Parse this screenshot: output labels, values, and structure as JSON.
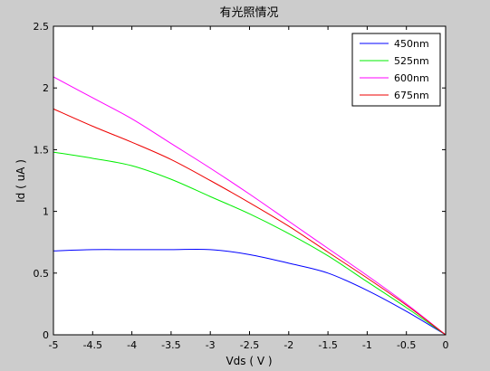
{
  "chart_data": {
    "type": "line",
    "title": "有光照情况",
    "xlabel": "Vds ( V )",
    "ylabel": "Id ( uA )",
    "xlim": [
      -5,
      0
    ],
    "ylim": [
      0,
      2.5
    ],
    "xticks": [
      -5,
      -4.5,
      -4,
      -3.5,
      -3,
      -2.5,
      -2,
      -1.5,
      -1,
      -0.5,
      0
    ],
    "yticks": [
      0,
      0.5,
      1,
      1.5,
      2,
      2.5
    ],
    "xtick_labels": [
      "-5",
      "-4.5",
      "-4",
      "-3.5",
      "-3",
      "-2.5",
      "-2",
      "-1.5",
      "-1",
      "-0.5",
      "0"
    ],
    "ytick_labels": [
      "0",
      "0.5",
      "1",
      "1.5",
      "2",
      "2.5"
    ],
    "grid": false,
    "legend": "top-right",
    "x": [
      -5,
      -4.5,
      -4,
      -3.5,
      -3,
      -2.5,
      -2,
      -1.5,
      -1,
      -0.5,
      0
    ],
    "series": [
      {
        "name": "450nm",
        "color": "#0000ff",
        "values": [
          0.68,
          0.69,
          0.69,
          0.69,
          0.69,
          0.65,
          0.58,
          0.5,
          0.36,
          0.19,
          0.0
        ]
      },
      {
        "name": "525nm",
        "color": "#00ee00",
        "values": [
          1.48,
          1.43,
          1.37,
          1.26,
          1.12,
          0.98,
          0.82,
          0.64,
          0.43,
          0.22,
          0.0
        ]
      },
      {
        "name": "600nm",
        "color": "#ff00ff",
        "values": [
          2.09,
          1.92,
          1.75,
          1.55,
          1.35,
          1.14,
          0.92,
          0.7,
          0.48,
          0.25,
          0.0
        ]
      },
      {
        "name": "675nm",
        "color": "#ee0000",
        "values": [
          1.83,
          1.69,
          1.56,
          1.42,
          1.25,
          1.07,
          0.88,
          0.67,
          0.46,
          0.24,
          0.0
        ]
      }
    ]
  }
}
